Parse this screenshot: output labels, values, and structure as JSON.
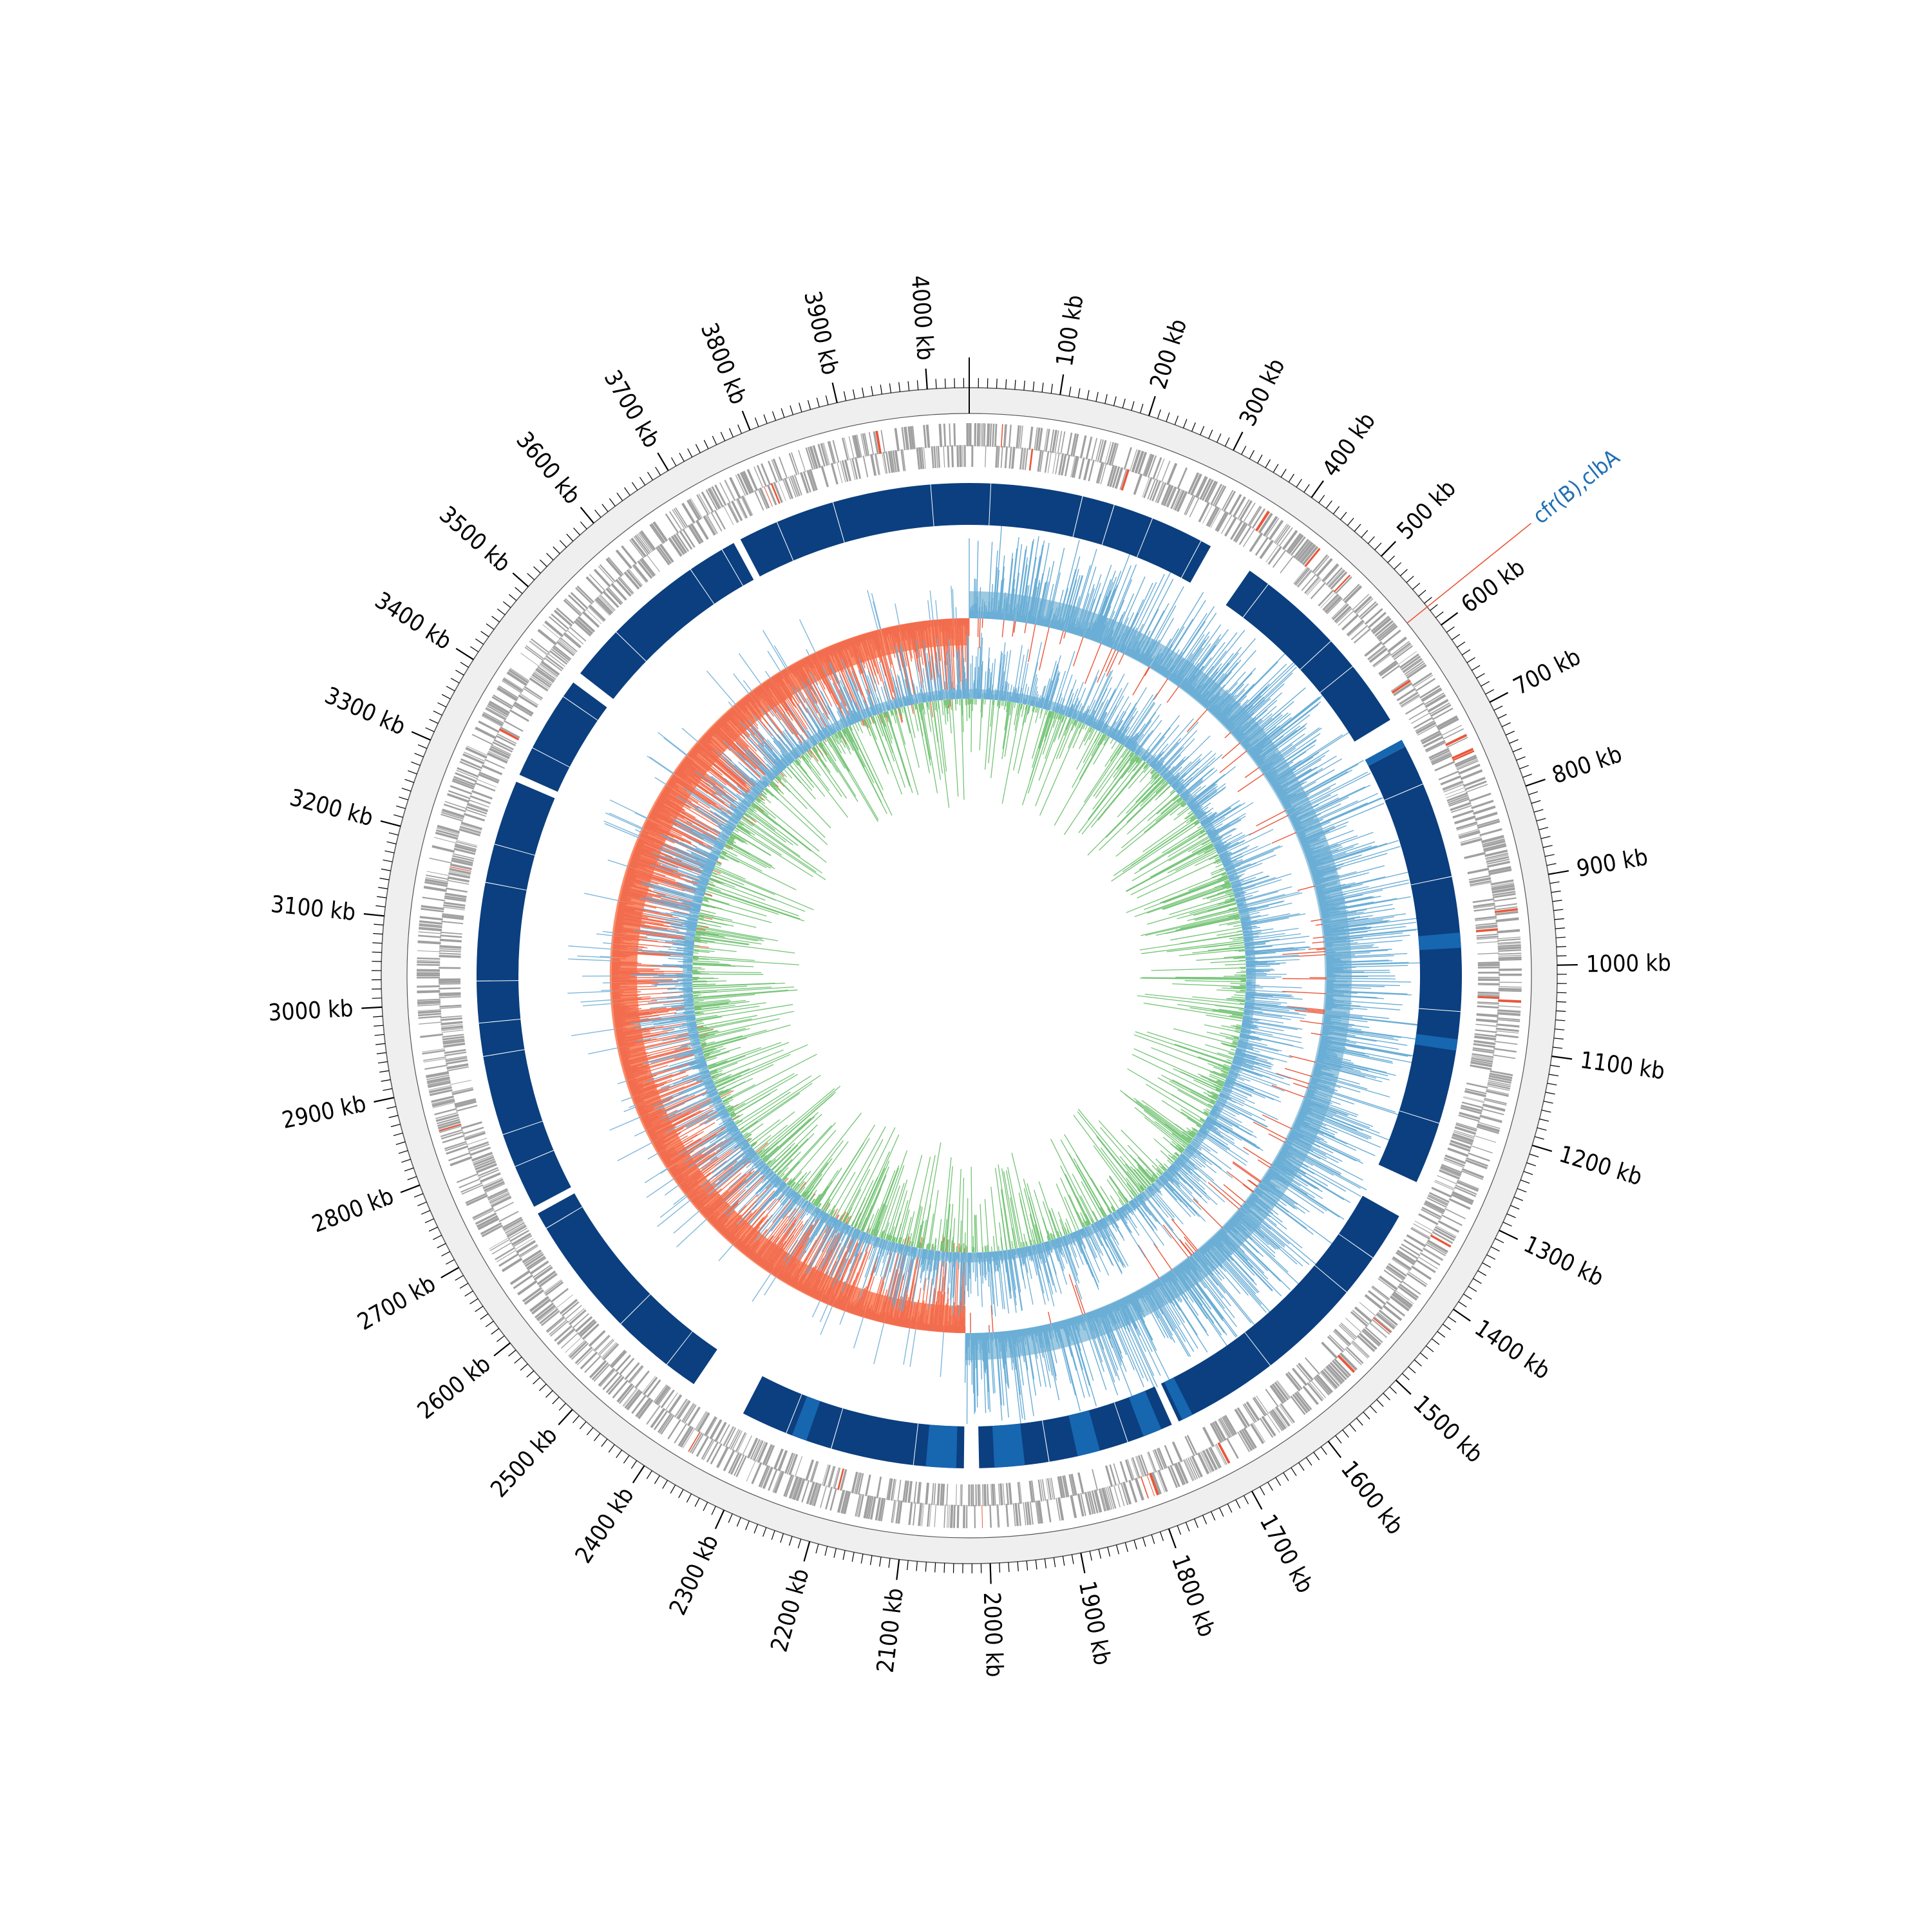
{
  "chart_data": {
    "type": "circular-genome",
    "genome_length_kb": 4046,
    "tick_unit": "kb",
    "tick_labels": [
      "100 kb",
      "200 kb",
      "300 kb",
      "400 kb",
      "500 kb",
      "600 kb",
      "700 kb",
      "800 kb",
      "900 kb",
      "1000 kb",
      "1100 kb",
      "1200 kb",
      "1300 kb",
      "1400 kb",
      "1500 kb",
      "1600 kb",
      "1700 kb",
      "1800 kb",
      "1900 kb",
      "2000 kb",
      "2100 kb",
      "2200 kb",
      "2300 kb",
      "2400 kb",
      "2500 kb",
      "2600 kb",
      "2700 kb",
      "2800 kb",
      "2900 kb",
      "3000 kb",
      "3100 kb",
      "3200 kb",
      "3300 kb",
      "3400 kb",
      "3500 kb",
      "3600 kb",
      "3700 kb",
      "3800 kb",
      "3900 kb",
      "4000 kb"
    ],
    "tick_values_kb": [
      100,
      200,
      300,
      400,
      500,
      600,
      700,
      800,
      900,
      1000,
      1100,
      1200,
      1300,
      1400,
      1500,
      1600,
      1700,
      1800,
      1900,
      2000,
      2100,
      2200,
      2300,
      2400,
      2500,
      2600,
      2700,
      2800,
      2900,
      3000,
      3100,
      3200,
      3300,
      3400,
      3500,
      3600,
      3700,
      3800,
      3900,
      4000
    ],
    "annotations": [
      {
        "label": "cfr(B),clbA",
        "position_kb": 575,
        "color": "#1f6fb5",
        "line_color": "#e8573a"
      }
    ],
    "tracks": [
      {
        "name": "cds",
        "type": "features",
        "color": "#a0a0a0"
      },
      {
        "name": "homology",
        "type": "blocks",
        "color": "#0b3f7f",
        "blocks_kb": [
          [
            0,
            330
          ],
          [
            390,
            660
          ],
          [
            700,
            1290
          ],
          [
            1340,
            1740
          ],
          [
            1750,
            2010
          ],
          [
            2030,
            2330
          ],
          [
            2405,
            2710
          ],
          [
            2720,
            3295
          ],
          [
            3305,
            3445
          ],
          [
            3460,
            3725
          ],
          [
            3735,
            4046
          ]
        ],
        "accent_blocks_kb": [
          [
            690,
            700
          ],
          [
            955,
            975
          ],
          [
            1095,
            1110
          ],
          [
            1720,
            1735
          ],
          [
            1765,
            1790
          ],
          [
            1850,
            1880
          ],
          [
            1950,
            1990
          ],
          [
            2040,
            2080
          ],
          [
            2240,
            2260
          ]
        ]
      },
      {
        "name": "gc_skew",
        "type": "signed-histogram",
        "positive_color": "#9ecae1",
        "negative_color": "#fc8d6a",
        "switch_points_kb": [
          0,
          2030
        ]
      },
      {
        "name": "gc_content",
        "type": "histogram",
        "colors": [
          "#6baed6",
          "#74c476"
        ]
      }
    ],
    "grid": false,
    "legend": false
  }
}
